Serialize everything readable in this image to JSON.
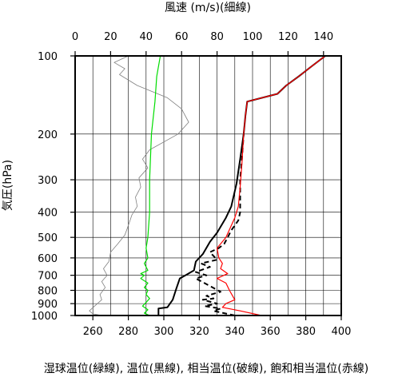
{
  "chart_data": {
    "type": "line",
    "title": "風速 (m/s)(細線)",
    "xlabel": "湿球温位(緑線), 温位(黒線), 相当温位(破線), 飽和相当温位(赤線)",
    "ylabel": "気圧(hPa)",
    "x_bottom": {
      "range": [
        250,
        400
      ],
      "ticks": [
        260,
        280,
        300,
        320,
        340,
        360,
        380,
        400
      ],
      "grid_step": 10
    },
    "x_top": {
      "range": [
        0,
        150
      ],
      "ticks": [
        0,
        20,
        40,
        60,
        80,
        100,
        120,
        140
      ]
    },
    "y": {
      "scale": "log",
      "range": [
        100,
        1000
      ],
      "ticks": [
        100,
        200,
        300,
        400,
        500,
        600,
        700,
        800,
        900,
        1000
      ],
      "reversed": true
    },
    "grid": true,
    "series": [
      {
        "colors": "#808080",
        "style": "thin",
        "axis": "top",
        "points": [
          [
            15,
            1000
          ],
          [
            10,
            985
          ],
          [
            8,
            960
          ],
          [
            11,
            920
          ],
          [
            15,
            870
          ],
          [
            14,
            830
          ],
          [
            17,
            780
          ],
          [
            15,
            740
          ],
          [
            18,
            700
          ],
          [
            16,
            660
          ],
          [
            19,
            620
          ],
          [
            20,
            570
          ],
          [
            24,
            530
          ],
          [
            28,
            490
          ],
          [
            30,
            450
          ],
          [
            32,
            410
          ],
          [
            35,
            380
          ],
          [
            34,
            350
          ],
          [
            37,
            320
          ],
          [
            36,
            295
          ],
          [
            41,
            270
          ],
          [
            38,
            250
          ],
          [
            42,
            230
          ],
          [
            58,
            200
          ],
          [
            64,
            180
          ],
          [
            60,
            160
          ],
          [
            52,
            145
          ],
          [
            35,
            130
          ],
          [
            25,
            118
          ],
          [
            28,
            112
          ],
          [
            22,
            106
          ],
          [
            30,
            100
          ]
        ]
      },
      {
        "colors": "#00dd00",
        "style": "solid",
        "axis": "bottom",
        "points": [
          [
            292,
            1000
          ],
          [
            289,
            980
          ],
          [
            291,
            950
          ],
          [
            288,
            920
          ],
          [
            290,
            890
          ],
          [
            292,
            860
          ],
          [
            290,
            830
          ],
          [
            291,
            800
          ],
          [
            289,
            780
          ],
          [
            291,
            750
          ],
          [
            287,
            720
          ],
          [
            289,
            700
          ],
          [
            287,
            690
          ],
          [
            291,
            670
          ],
          [
            289,
            630
          ],
          [
            291,
            600
          ],
          [
            290,
            550
          ],
          [
            291,
            500
          ],
          [
            292,
            400
          ],
          [
            292,
            300
          ],
          [
            293,
            200
          ],
          [
            295,
            150
          ],
          [
            296,
            120
          ],
          [
            298,
            100
          ]
        ]
      },
      {
        "colors": "#000000",
        "style": "solid",
        "axis": "bottom",
        "points": [
          [
            297,
            1000
          ],
          [
            297,
            940
          ],
          [
            302,
            930
          ],
          [
            305,
            870
          ],
          [
            307,
            790
          ],
          [
            309,
            720
          ],
          [
            313,
            695
          ],
          [
            317,
            670
          ],
          [
            318,
            620
          ],
          [
            322,
            580
          ],
          [
            326,
            520
          ],
          [
            330,
            480
          ],
          [
            335,
            420
          ],
          [
            338,
            380
          ],
          [
            341,
            310
          ],
          [
            343,
            250
          ],
          [
            345,
            200
          ],
          [
            346,
            170
          ],
          [
            347,
            150
          ],
          [
            364,
            140
          ],
          [
            369,
            130
          ],
          [
            376,
            120
          ],
          [
            383,
            110
          ],
          [
            391,
            100
          ]
        ]
      },
      {
        "colors": "#000000",
        "style": "dashed",
        "axis": "bottom",
        "points": [
          [
            340,
            1000
          ],
          [
            328,
            960
          ],
          [
            332,
            940
          ],
          [
            323,
            920
          ],
          [
            330,
            900
          ],
          [
            322,
            870
          ],
          [
            328,
            860
          ],
          [
            324,
            840
          ],
          [
            332,
            810
          ],
          [
            318,
            720
          ],
          [
            324,
            700
          ],
          [
            318,
            680
          ],
          [
            326,
            650
          ],
          [
            321,
            630
          ],
          [
            330,
            610
          ],
          [
            326,
            570
          ],
          [
            331,
            550
          ],
          [
            334,
            530
          ],
          [
            336,
            500
          ],
          [
            338,
            470
          ],
          [
            342,
            430
          ],
          [
            343,
            400
          ],
          [
            343,
            300
          ],
          [
            344,
            250
          ],
          [
            345,
            200
          ]
        ]
      },
      {
        "colors": "#ff0000",
        "style": "solid",
        "axis": "bottom",
        "points": [
          [
            355,
            1000
          ],
          [
            343,
            960
          ],
          [
            333,
            930
          ],
          [
            335,
            900
          ],
          [
            340,
            870
          ],
          [
            337,
            800
          ],
          [
            335,
            750
          ],
          [
            330,
            720
          ],
          [
            336,
            690
          ],
          [
            332,
            660
          ],
          [
            333,
            630
          ],
          [
            331,
            600
          ],
          [
            330,
            550
          ],
          [
            335,
            500
          ],
          [
            340,
            420
          ],
          [
            342,
            380
          ],
          [
            343,
            320
          ],
          [
            344,
            260
          ],
          [
            345,
            200
          ],
          [
            346,
            170
          ],
          [
            347,
            150
          ],
          [
            364,
            140
          ],
          [
            369,
            130
          ],
          [
            376,
            120
          ],
          [
            383,
            110
          ],
          [
            391,
            100
          ]
        ]
      }
    ]
  }
}
